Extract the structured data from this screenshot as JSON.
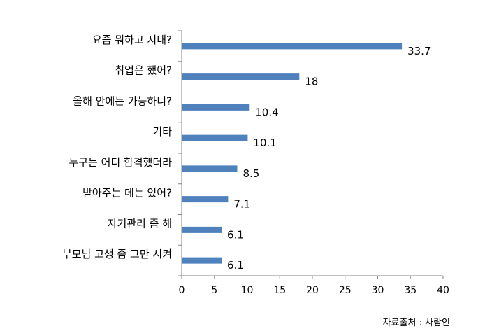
{
  "chart_data": {
    "type": "bar",
    "orientation": "horizontal",
    "categories": [
      "요즘 뭐하고 지내?",
      "취업은 했어?",
      "올해 안에는 가능하니?",
      "기타",
      "누구는 어디 합격했더라",
      "받아주는 데는 있어?",
      "자기관리 좀 해",
      "부모님 고생 좀 그만 시켜"
    ],
    "values": [
      33.7,
      18,
      10.4,
      10.1,
      8.5,
      7.1,
      6.1,
      6.1
    ],
    "value_labels": [
      "33.7",
      "18",
      "10.4",
      "10.1",
      "8.5",
      "7.1",
      "6.1",
      "6.1"
    ],
    "xlim": [
      0,
      40
    ],
    "xticks": [
      "0",
      "5",
      "10",
      "15",
      "20",
      "25",
      "30",
      "35",
      "40"
    ],
    "grid": false,
    "bar_color": "#4f81bd"
  },
  "source": "자료출처 : 사람인"
}
